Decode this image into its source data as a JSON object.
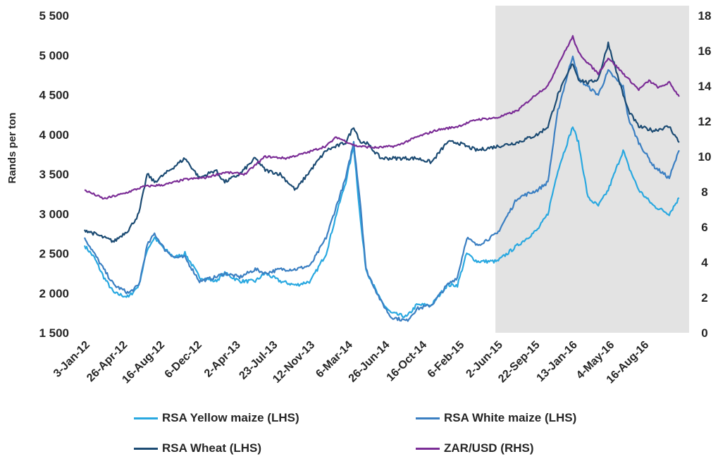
{
  "chart_data": {
    "type": "line",
    "title": "",
    "ylabel_left": "Rands per ton",
    "ylabel_right": "",
    "ylim_left": [
      1500,
      5500
    ],
    "ylim_right": [
      0,
      18
    ],
    "yticks_left": [
      "5 500",
      "5 000",
      "4 500",
      "4 000",
      "3 500",
      "3 000",
      "2 500",
      "2 000",
      "1 500"
    ],
    "yticks_right": [
      "18",
      "16",
      "14",
      "12",
      "10",
      "8",
      "6",
      "4",
      "2",
      "0"
    ],
    "xticks": [
      "3-Jan-12",
      "26-Apr-12",
      "16-Aug-12",
      "6-Dec-12",
      "2-Apr-13",
      "23-Jul-13",
      "12-Nov-13",
      "6-Mar-14",
      "26-Jun-14",
      "16-Oct-14",
      "6-Feb-15",
      "2-Jun-15",
      "22-Sep-15",
      "13-Jan-16",
      "4-May-16",
      "16-Aug-16"
    ],
    "shaded_region": {
      "from": "2-Jun-15",
      "to": "end",
      "color": "#e6e6e6"
    },
    "grid": false,
    "legend_position": "bottom",
    "series": [
      {
        "name": "RSA Yellow maize (LHS)",
        "axis": "left",
        "color": "#29a8e0",
        "points": [
          [
            "3-Jan-12",
            2600
          ],
          [
            "1-Feb-12",
            2450
          ],
          [
            "1-Mar-12",
            2200
          ],
          [
            "1-Apr-12",
            2000
          ],
          [
            "15-May-12",
            1950
          ],
          [
            "15-Jun-12",
            2100
          ],
          [
            "10-Jul-12",
            2550
          ],
          [
            "1-Aug-12",
            2700
          ],
          [
            "1-Sep-12",
            2550
          ],
          [
            "1-Oct-12",
            2450
          ],
          [
            "1-Nov-12",
            2500
          ],
          [
            "15-Dec-12",
            2200
          ],
          [
            "1-Feb-13",
            2150
          ],
          [
            "1-Mar-13",
            2250
          ],
          [
            "15-Apr-13",
            2150
          ],
          [
            "1-Jun-13",
            2150
          ],
          [
            "1-Jul-13",
            2250
          ],
          [
            "15-Aug-13",
            2150
          ],
          [
            "1-Oct-13",
            2100
          ],
          [
            "15-Nov-13",
            2150
          ],
          [
            "1-Jan-14",
            2500
          ],
          [
            "1-Feb-14",
            3000
          ],
          [
            "1-Mar-14",
            3400
          ],
          [
            "25-Mar-14",
            3850
          ],
          [
            "15-Apr-14",
            2900
          ],
          [
            "1-May-14",
            2300
          ],
          [
            "15-Jun-14",
            1900
          ],
          [
            "15-Jul-14",
            1750
          ],
          [
            "1-Sep-14",
            1700
          ],
          [
            "1-Oct-14",
            1850
          ],
          [
            "15-Nov-14",
            1850
          ],
          [
            "1-Jan-15",
            2100
          ],
          [
            "1-Feb-15",
            2100
          ],
          [
            "1-Mar-15",
            2500
          ],
          [
            "1-Apr-15",
            2400
          ],
          [
            "1-Jun-15",
            2400
          ],
          [
            "1-Aug-15",
            2600
          ],
          [
            "1-Oct-15",
            2800
          ],
          [
            "1-Nov-15",
            3000
          ],
          [
            "1-Dec-15",
            3550
          ],
          [
            "15-Jan-16",
            4100
          ],
          [
            "1-Feb-16",
            3900
          ],
          [
            "1-Mar-16",
            3200
          ],
          [
            "1-Apr-16",
            3100
          ],
          [
            "1-May-16",
            3300
          ],
          [
            "15-Jun-16",
            3800
          ],
          [
            "1-Jul-16",
            3600
          ],
          [
            "1-Aug-16",
            3300
          ],
          [
            "15-Sep-16",
            3100
          ],
          [
            "1-Nov-16",
            3000
          ],
          [
            "1-Dec-16",
            3200
          ]
        ]
      },
      {
        "name": "RSA White maize (LHS)",
        "axis": "left",
        "color": "#3b7fc2",
        "points": [
          [
            "3-Jan-12",
            2700
          ],
          [
            "1-Feb-12",
            2500
          ],
          [
            "1-Mar-12",
            2300
          ],
          [
            "1-Apr-12",
            2100
          ],
          [
            "15-May-12",
            2000
          ],
          [
            "15-Jun-12",
            2100
          ],
          [
            "10-Jul-12",
            2600
          ],
          [
            "1-Aug-12",
            2750
          ],
          [
            "1-Sep-12",
            2550
          ],
          [
            "1-Oct-12",
            2450
          ],
          [
            "1-Nov-12",
            2450
          ],
          [
            "15-Dec-12",
            2150
          ],
          [
            "1-Feb-13",
            2200
          ],
          [
            "1-Mar-13",
            2250
          ],
          [
            "15-Apr-13",
            2200
          ],
          [
            "1-Jun-13",
            2300
          ],
          [
            "1-Jul-13",
            2250
          ],
          [
            "15-Aug-13",
            2300
          ],
          [
            "1-Oct-13",
            2300
          ],
          [
            "15-Nov-13",
            2350
          ],
          [
            "1-Jan-14",
            2700
          ],
          [
            "1-Feb-14",
            3100
          ],
          [
            "1-Mar-14",
            3450
          ],
          [
            "25-Mar-14",
            3900
          ],
          [
            "15-Apr-14",
            3100
          ],
          [
            "1-May-14",
            2300
          ],
          [
            "15-Jun-14",
            1900
          ],
          [
            "15-Jul-14",
            1700
          ],
          [
            "1-Sep-14",
            1650
          ],
          [
            "1-Oct-14",
            1800
          ],
          [
            "15-Nov-14",
            1850
          ],
          [
            "1-Jan-15",
            2100
          ],
          [
            "1-Feb-15",
            2200
          ],
          [
            "1-Mar-15",
            2700
          ],
          [
            "1-Apr-15",
            2600
          ],
          [
            "1-Jun-15",
            2750
          ],
          [
            "1-Aug-15",
            3200
          ],
          [
            "1-Oct-15",
            3300
          ],
          [
            "1-Nov-15",
            3400
          ],
          [
            "1-Dec-15",
            4300
          ],
          [
            "15-Jan-16",
            5000
          ],
          [
            "1-Feb-16",
            4700
          ],
          [
            "1-Mar-16",
            4600
          ],
          [
            "1-Apr-16",
            4500
          ],
          [
            "1-May-16",
            4800
          ],
          [
            "15-Jun-16",
            4600
          ],
          [
            "1-Jul-16",
            4200
          ],
          [
            "1-Aug-16",
            3900
          ],
          [
            "15-Sep-16",
            3600
          ],
          [
            "1-Nov-16",
            3450
          ],
          [
            "1-Dec-16",
            3800
          ]
        ]
      },
      {
        "name": "RSA Wheat (LHS)",
        "axis": "left",
        "color": "#1c4b73",
        "points": [
          [
            "3-Jan-12",
            2800
          ],
          [
            "1-Feb-12",
            2750
          ],
          [
            "1-Mar-12",
            2700
          ],
          [
            "1-Apr-12",
            2650
          ],
          [
            "15-May-12",
            2800
          ],
          [
            "15-Jun-12",
            3000
          ],
          [
            "10-Jul-12",
            3500
          ],
          [
            "1-Aug-12",
            3400
          ],
          [
            "1-Sep-12",
            3500
          ],
          [
            "1-Oct-12",
            3600
          ],
          [
            "1-Nov-12",
            3700
          ],
          [
            "15-Dec-12",
            3450
          ],
          [
            "1-Feb-13",
            3550
          ],
          [
            "1-Mar-13",
            3400
          ],
          [
            "15-Apr-13",
            3500
          ],
          [
            "1-Jun-13",
            3700
          ],
          [
            "1-Jul-13",
            3550
          ],
          [
            "15-Aug-13",
            3500
          ],
          [
            "1-Oct-13",
            3300
          ],
          [
            "15-Nov-13",
            3550
          ],
          [
            "1-Jan-14",
            3800
          ],
          [
            "1-Feb-14",
            3850
          ],
          [
            "1-Mar-14",
            3900
          ],
          [
            "25-Mar-14",
            4100
          ],
          [
            "15-Apr-14",
            3900
          ],
          [
            "1-May-14",
            3900
          ],
          [
            "15-Jun-14",
            3700
          ],
          [
            "15-Jul-14",
            3700
          ],
          [
            "1-Sep-14",
            3700
          ],
          [
            "1-Oct-14",
            3700
          ],
          [
            "15-Nov-14",
            3650
          ],
          [
            "1-Jan-15",
            3900
          ],
          [
            "1-Feb-15",
            3900
          ],
          [
            "1-Mar-15",
            3850
          ],
          [
            "1-Apr-15",
            3800
          ],
          [
            "1-Jun-15",
            3850
          ],
          [
            "1-Aug-15",
            3900
          ],
          [
            "1-Oct-15",
            4000
          ],
          [
            "1-Nov-15",
            4100
          ],
          [
            "1-Dec-15",
            4500
          ],
          [
            "15-Jan-16",
            4900
          ],
          [
            "1-Feb-16",
            4700
          ],
          [
            "1-Mar-16",
            4650
          ],
          [
            "1-Apr-16",
            4700
          ],
          [
            "1-May-16",
            5150
          ],
          [
            "15-Jun-16",
            4500
          ],
          [
            "1-Jul-16",
            4300
          ],
          [
            "1-Aug-16",
            4100
          ],
          [
            "15-Sep-16",
            4050
          ],
          [
            "1-Nov-16",
            4100
          ],
          [
            "1-Dec-16",
            3900
          ]
        ]
      },
      {
        "name": "ZAR/USD (RHS)",
        "axis": "right",
        "color": "#7b2d96",
        "points": [
          [
            "3-Jan-12",
            8.1
          ],
          [
            "1-Mar-12",
            7.6
          ],
          [
            "1-May-12",
            7.9
          ],
          [
            "1-Jul-12",
            8.3
          ],
          [
            "1-Sep-12",
            8.4
          ],
          [
            "1-Nov-12",
            8.7
          ],
          [
            "1-Jan-13",
            8.8
          ],
          [
            "1-Mar-13",
            9.1
          ],
          [
            "1-May-13",
            9.0
          ],
          [
            "1-Jul-13",
            10.0
          ],
          [
            "1-Sep-13",
            9.9
          ],
          [
            "1-Nov-13",
            10.2
          ],
          [
            "1-Jan-14",
            10.6
          ],
          [
            "1-Feb-14",
            11.1
          ],
          [
            "1-Apr-14",
            10.6
          ],
          [
            "1-Jun-14",
            10.5
          ],
          [
            "1-Aug-14",
            10.6
          ],
          [
            "1-Oct-14",
            11.1
          ],
          [
            "1-Dec-14",
            11.5
          ],
          [
            "1-Feb-15",
            11.7
          ],
          [
            "1-Apr-15",
            12.1
          ],
          [
            "1-Jun-15",
            12.2
          ],
          [
            "1-Aug-15",
            12.6
          ],
          [
            "1-Oct-15",
            13.6
          ],
          [
            "1-Nov-15",
            14.0
          ],
          [
            "1-Dec-15",
            15.2
          ],
          [
            "15-Jan-16",
            16.8
          ],
          [
            "1-Feb-16",
            15.9
          ],
          [
            "1-Mar-16",
            15.3
          ],
          [
            "1-Apr-16",
            14.7
          ],
          [
            "1-May-16",
            15.6
          ],
          [
            "1-Jul-16",
            14.4
          ],
          [
            "1-Aug-16",
            13.8
          ],
          [
            "1-Sep-16",
            14.3
          ],
          [
            "1-Oct-16",
            13.9
          ],
          [
            "1-Nov-16",
            14.2
          ],
          [
            "1-Dec-16",
            13.4
          ]
        ]
      }
    ]
  }
}
